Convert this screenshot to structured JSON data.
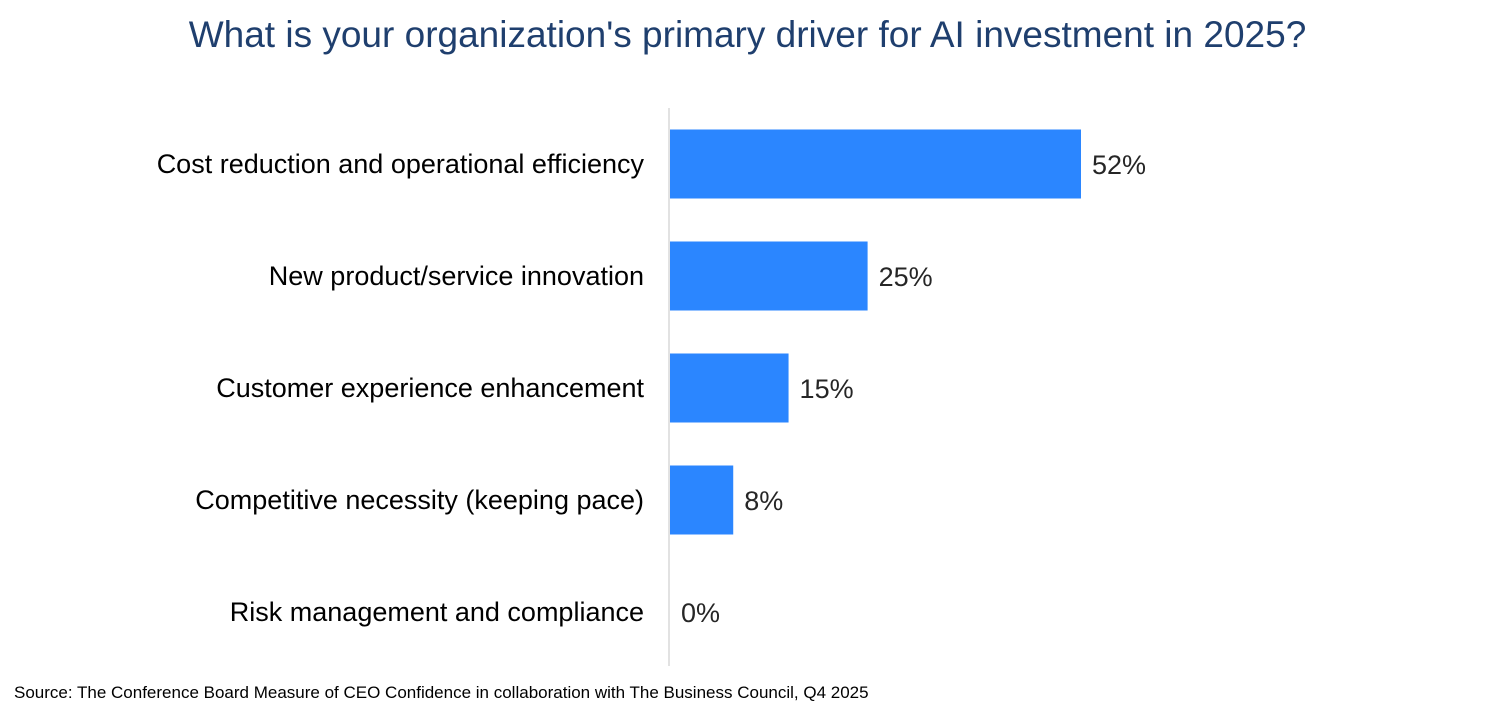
{
  "chart_data": {
    "type": "bar",
    "orientation": "horizontal",
    "title": "What is your organization's primary driver for AI investment in 2025?",
    "categories": [
      "Cost reduction and operational efficiency",
      "New product/service innovation",
      "Customer experience enhancement",
      "Competitive necessity (keeping pace)",
      "Risk management and compliance"
    ],
    "values": [
      52,
      25,
      15,
      8,
      0
    ],
    "data_labels": [
      "52%",
      "25%",
      "15%",
      "8%",
      "0%"
    ],
    "unit": "%",
    "xlabel": "",
    "ylabel": "",
    "xlim": [
      0,
      52
    ],
    "grid": false,
    "legend": "none",
    "bar_color": "#2b86ff"
  },
  "footer": {
    "source": "Source: The Conference Board Measure of CEO Confidence in collaboration with The Business Council, Q4 2025"
  },
  "colors": {
    "title": "#1f3f6e",
    "axis": "#d9d9d9",
    "text": "#000000"
  }
}
